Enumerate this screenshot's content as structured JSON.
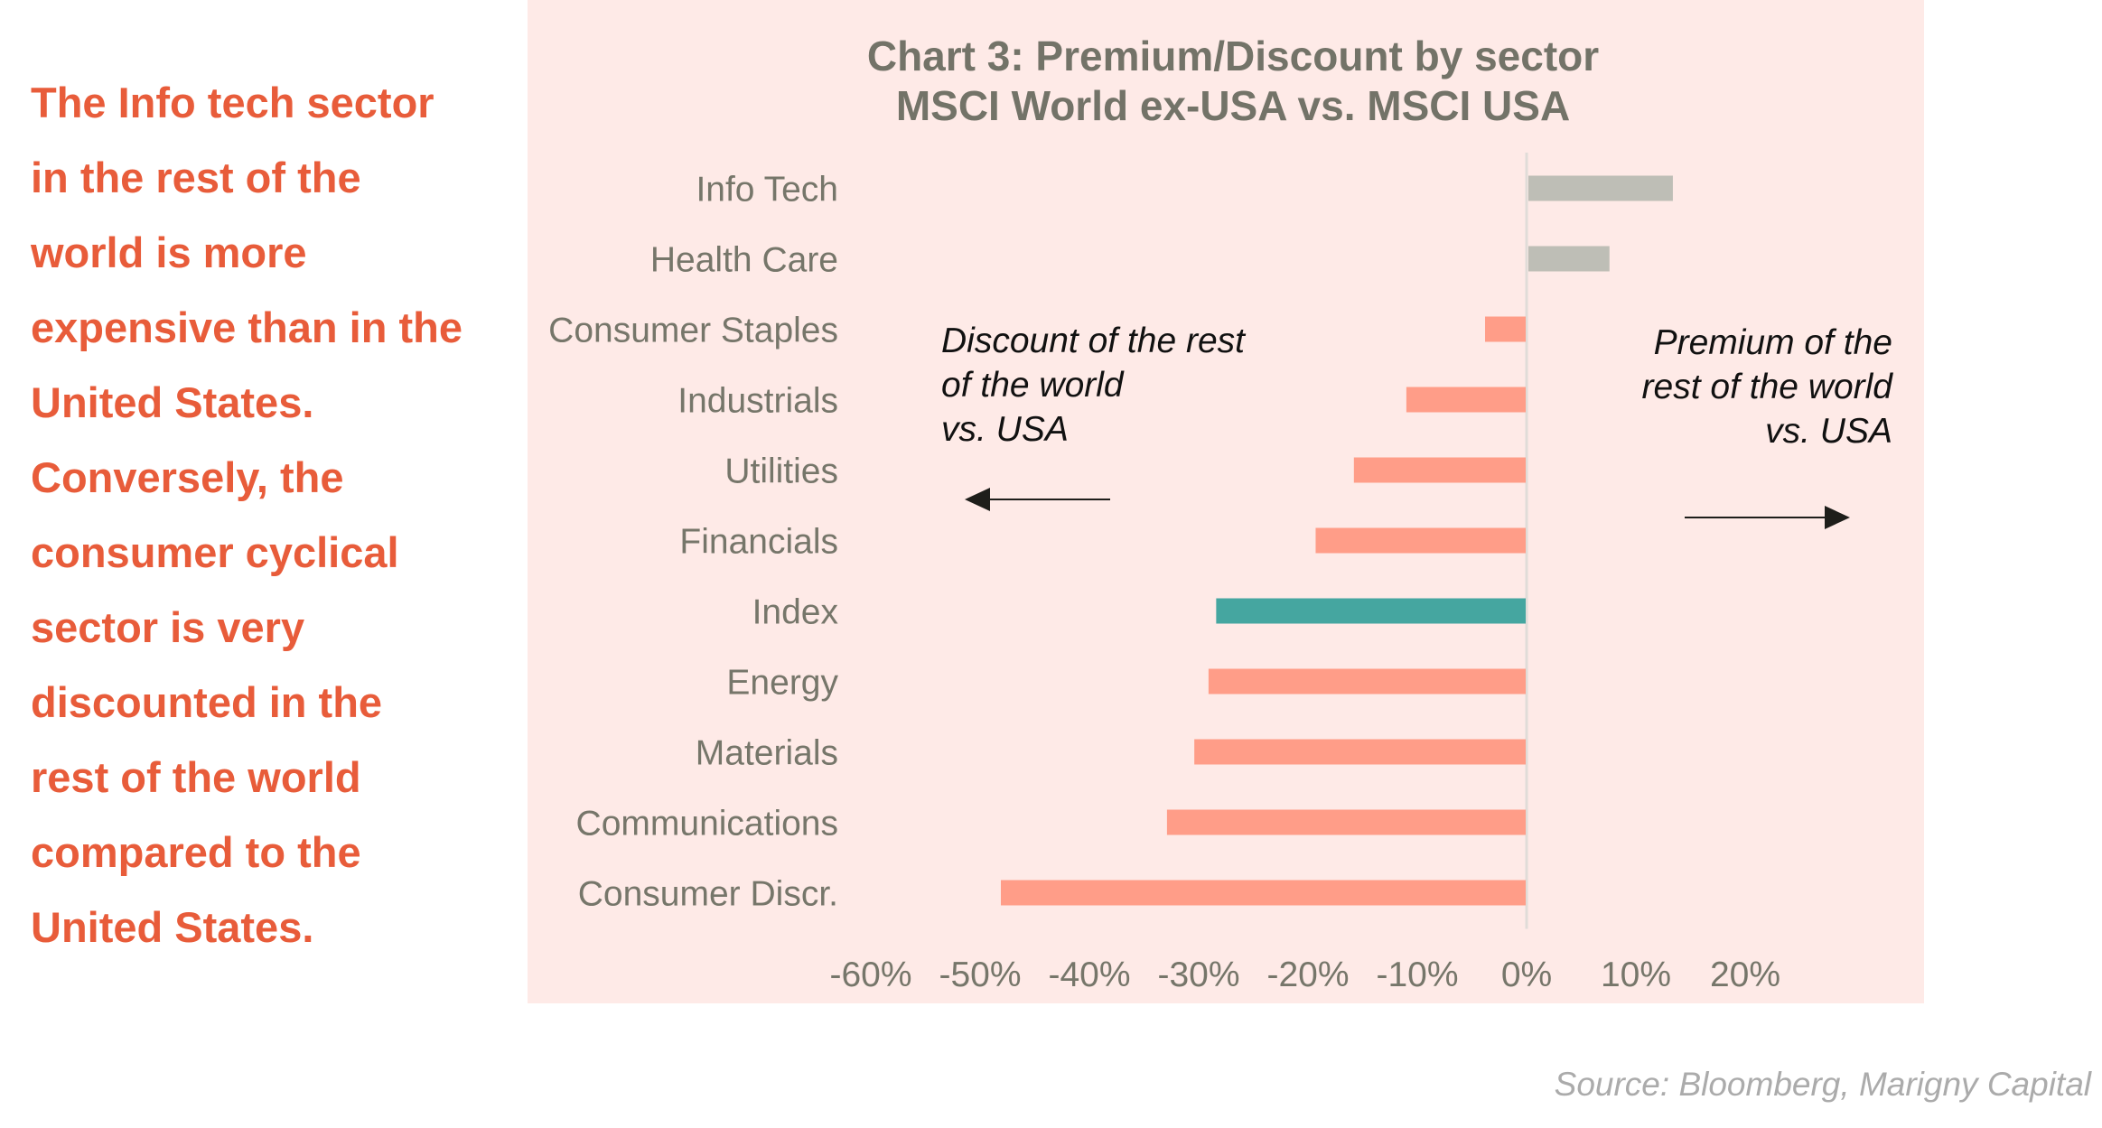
{
  "commentary": {
    "lines": [
      "The Info tech sector",
      "in the rest of the",
      "world is more",
      "expensive than in the",
      "United States.",
      "Conversely, the",
      "consumer cyclical",
      "sector is very",
      "discounted in the",
      "rest of the world",
      "compared to the",
      "United States."
    ],
    "color": "#E85C3A"
  },
  "source": "Source: Bloomberg, Marigny Capital",
  "chart_data": {
    "type": "bar",
    "orientation": "horizontal",
    "title": "Chart 3: Premium/Discount by sector",
    "subtitle": "MSCI World ex-USA vs. MSCI USA",
    "xlabel": "",
    "ylabel": "",
    "categories": [
      "Info Tech",
      "Health Care",
      "Consumer Staples",
      "Industrials",
      "Utilities",
      "Financials",
      "Index",
      "Energy",
      "Materials",
      "Communications",
      "Consumer Discr."
    ],
    "values": [
      13.3,
      7.5,
      -3.8,
      -11.0,
      -15.8,
      -19.3,
      -28.4,
      -29.1,
      -30.4,
      -32.9,
      -48.1
    ],
    "unit": "%",
    "xlim": [
      -60,
      20
    ],
    "xticks": [
      -60,
      -50,
      -40,
      -30,
      -20,
      -10,
      0,
      10,
      20
    ],
    "xtick_labels": [
      "-60%",
      "-50%",
      "-40%",
      "-30%",
      "-20%",
      "-10%",
      "0%",
      "10%",
      "20%"
    ],
    "grid": false,
    "legend": "none",
    "colors": {
      "premium": "#BEBEB6",
      "discount": "#FF9D88",
      "index": "#45A6A0",
      "axis": "#E0DCD8",
      "background": "#FEEAE7",
      "text": "#737368"
    },
    "highlight_category": "Index",
    "annotations": [
      {
        "text_lines": [
          "Discount of the rest",
          "of the world",
          "vs. USA"
        ],
        "arrow": "left",
        "position": "left"
      },
      {
        "text_lines": [
          "Premium of the",
          "rest of the world",
          "vs. USA"
        ],
        "arrow": "right",
        "position": "right"
      }
    ]
  }
}
